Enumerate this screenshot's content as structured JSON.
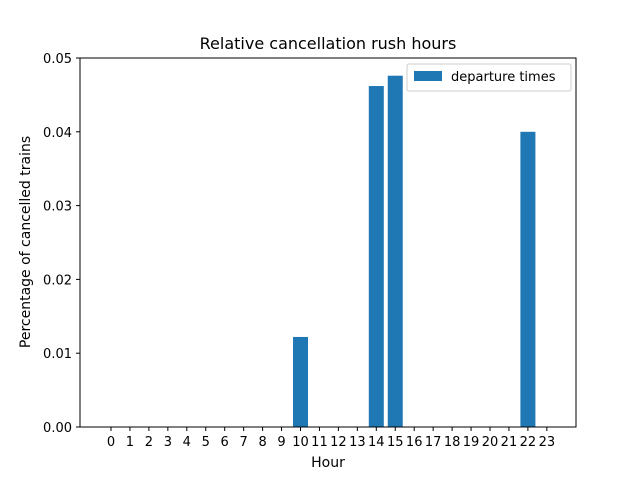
{
  "chart_data": {
    "type": "bar",
    "title": "Relative cancellation rush hours",
    "xlabel": "Hour",
    "ylabel": "Percentage of cancelled trains",
    "categories": [
      "0",
      "1",
      "2",
      "3",
      "4",
      "5",
      "6",
      "7",
      "8",
      "9",
      "10",
      "11",
      "12",
      "13",
      "14",
      "15",
      "16",
      "17",
      "18",
      "19",
      "20",
      "21",
      "22",
      "23"
    ],
    "series": [
      {
        "name": "departure times",
        "color": "#1f77b4",
        "values": [
          0,
          0,
          0,
          0,
          0,
          0,
          0,
          0,
          0,
          0,
          0.0122,
          0,
          0,
          0,
          0.0462,
          0.0476,
          0,
          0,
          0,
          0,
          0,
          0,
          0.04,
          0
        ]
      }
    ],
    "ylim": [
      0,
      0.05
    ],
    "yticks": [
      "0.00",
      "0.01",
      "0.02",
      "0.03",
      "0.04",
      "0.05"
    ],
    "grid": false,
    "legend_position": "upper right"
  }
}
